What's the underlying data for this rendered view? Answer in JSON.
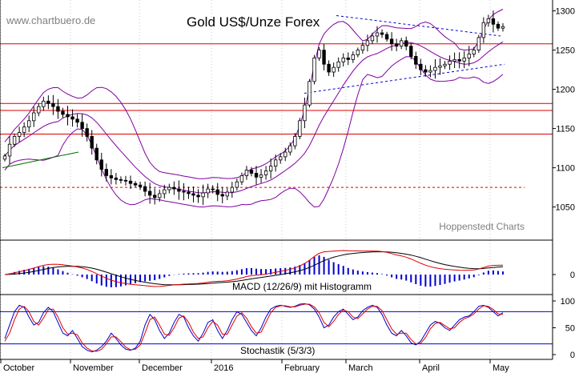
{
  "site": "www.chartbuero.de",
  "watermark": "Hoppenstedt Charts",
  "chart_data": [
    {
      "type": "candlestick",
      "title": "Gold US$/Unze Forex",
      "y_ticks": [
        1050,
        1100,
        1150,
        1200,
        1250,
        1300
      ],
      "y_range": [
        1020,
        1320
      ],
      "x_labels": [
        "October",
        "November",
        "December",
        "2016",
        "February",
        "March",
        "April",
        "May"
      ],
      "horizontal_levels": [
        {
          "value": 1258,
          "style": "solid",
          "color": "#dd0000"
        },
        {
          "value": 1182,
          "style": "solid",
          "color": "#dd0000"
        },
        {
          "value": 1173,
          "style": "solid",
          "color": "#dd0000"
        },
        {
          "value": 1143,
          "style": "solid",
          "color": "#dd0000"
        },
        {
          "value": 1075,
          "style": "dashed",
          "color": "#dd0000"
        }
      ],
      "close_series": [
        1115,
        1130,
        1140,
        1145,
        1152,
        1160,
        1170,
        1178,
        1185,
        1182,
        1178,
        1172,
        1168,
        1165,
        1162,
        1158,
        1150,
        1140,
        1125,
        1110,
        1098,
        1090,
        1087,
        1085,
        1084,
        1083,
        1080,
        1078,
        1076,
        1070,
        1065,
        1062,
        1067,
        1072,
        1075,
        1073,
        1070,
        1069,
        1067,
        1065,
        1063,
        1068,
        1073,
        1072,
        1066,
        1064,
        1069,
        1075,
        1082,
        1090,
        1097,
        1093,
        1088,
        1091,
        1096,
        1102,
        1110,
        1114,
        1120,
        1128,
        1140,
        1160,
        1180,
        1210,
        1240,
        1250,
        1232,
        1222,
        1228,
        1235,
        1240,
        1238,
        1244,
        1250,
        1256,
        1262,
        1268,
        1272,
        1270,
        1264,
        1258,
        1255,
        1262,
        1255,
        1242,
        1232,
        1225,
        1222,
        1224,
        1228,
        1230,
        1232,
        1236,
        1238,
        1236,
        1240,
        1245,
        1250,
        1266,
        1285,
        1290,
        1283,
        1278,
        1280
      ],
      "bollinger": {
        "color": "#8000a0"
      },
      "moving_average": {
        "color": "#007000",
        "values": [
          1100,
          1104,
          1108,
          1112,
          1116,
          1120
        ]
      },
      "trend_lines": {
        "color": "#0000cc",
        "style": "dashed"
      },
      "candle_color": "#000000"
    },
    {
      "type": "line",
      "title": "MACD (12/26/9) mit Histogramm",
      "y_ticks": [
        0
      ],
      "series": [
        {
          "role": "macd",
          "color": "#dd0000"
        },
        {
          "role": "signal",
          "color": "#000000"
        },
        {
          "role": "histogram",
          "color": "#0000cc"
        }
      ]
    },
    {
      "type": "line",
      "title": "Stochastik (5/3/3)",
      "y_ticks": [
        0,
        50,
        100
      ],
      "y_range": [
        0,
        100
      ],
      "levels": [
        80,
        20
      ],
      "series": [
        {
          "role": "%K",
          "color": "#0000cc",
          "values": [
            30,
            55,
            80,
            92,
            88,
            70,
            55,
            60,
            78,
            88,
            80,
            60,
            40,
            35,
            45,
            30,
            15,
            8,
            5,
            8,
            15,
            25,
            40,
            30,
            18,
            10,
            8,
            12,
            25,
            55,
            75,
            65,
            45,
            30,
            40,
            60,
            75,
            70,
            50,
            35,
            25,
            40,
            60,
            65,
            45,
            30,
            45,
            65,
            80,
            75,
            60,
            45,
            35,
            50,
            70,
            85,
            90,
            92,
            90,
            88,
            90,
            94,
            95,
            93,
            85,
            70,
            50,
            55,
            70,
            80,
            85,
            75,
            65,
            70,
            82,
            88,
            92,
            88,
            75,
            55,
            40,
            35,
            45,
            35,
            22,
            18,
            25,
            40,
            55,
            62,
            58,
            50,
            45,
            55,
            65,
            70,
            72,
            80,
            90,
            92,
            88,
            80,
            72,
            78
          ]
        },
        {
          "role": "%D",
          "color": "#dd0000",
          "values": [
            25,
            40,
            65,
            85,
            90,
            80,
            62,
            55,
            68,
            84,
            85,
            70,
            50,
            38,
            40,
            37,
            22,
            12,
            7,
            6,
            10,
            20,
            33,
            33,
            24,
            14,
            9,
            10,
            18,
            40,
            65,
            70,
            55,
            38,
            36,
            50,
            68,
            72,
            60,
            42,
            30,
            33,
            50,
            62,
            55,
            38,
            38,
            55,
            72,
            78,
            68,
            52,
            40,
            42,
            60,
            78,
            88,
            91,
            91,
            89,
            89,
            92,
            94,
            94,
            89,
            78,
            60,
            52,
            62,
            75,
            83,
            80,
            70,
            67,
            76,
            85,
            90,
            90,
            82,
            65,
            48,
            38,
            40,
            40,
            28,
            20,
            21,
            32,
            48,
            58,
            60,
            54,
            48,
            50,
            60,
            67,
            70,
            76,
            85,
            91,
            90,
            84,
            76,
            75
          ]
        }
      ]
    }
  ]
}
